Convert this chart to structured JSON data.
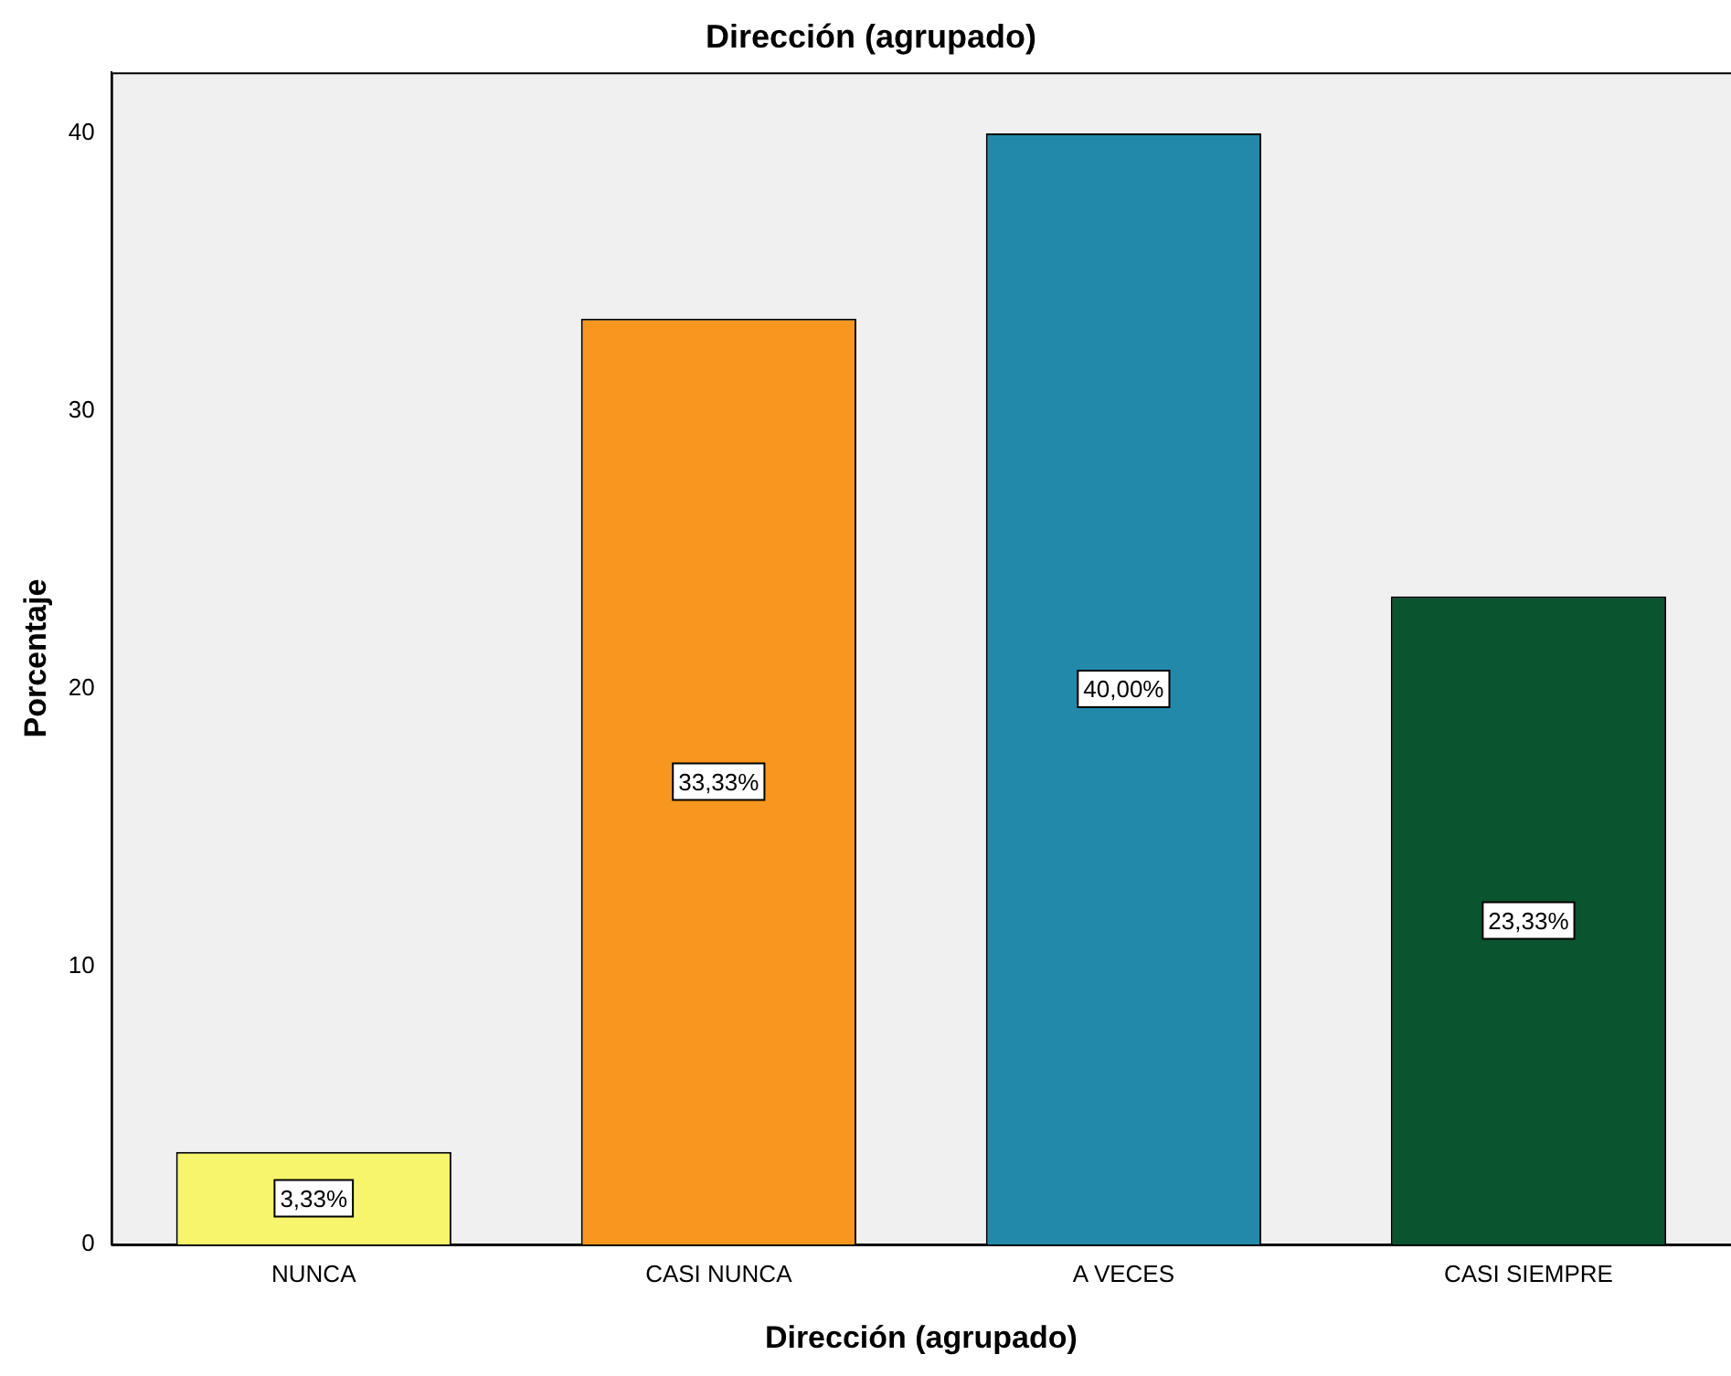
{
  "chart_data": {
    "type": "bar",
    "title": "Dirección (agrupado)",
    "xlabel": "Dirección (agrupado)",
    "ylabel": "Porcentaje",
    "categories": [
      "NUNCA",
      "CASI NUNCA",
      "A VECES",
      "CASI SIEMPRE"
    ],
    "values": [
      3.33,
      33.33,
      40,
      23.33
    ],
    "colors": [
      "#f7f56b",
      "#f7971f",
      "#2389ab",
      "#0b5430"
    ],
    "value_labels": [
      "3,33%",
      "33,33%",
      "40,00%",
      "23,33%"
    ],
    "ylim": [
      0,
      42.2
    ],
    "yticks": [
      0,
      10,
      20,
      30,
      40
    ],
    "grid": false,
    "legend": false
  }
}
